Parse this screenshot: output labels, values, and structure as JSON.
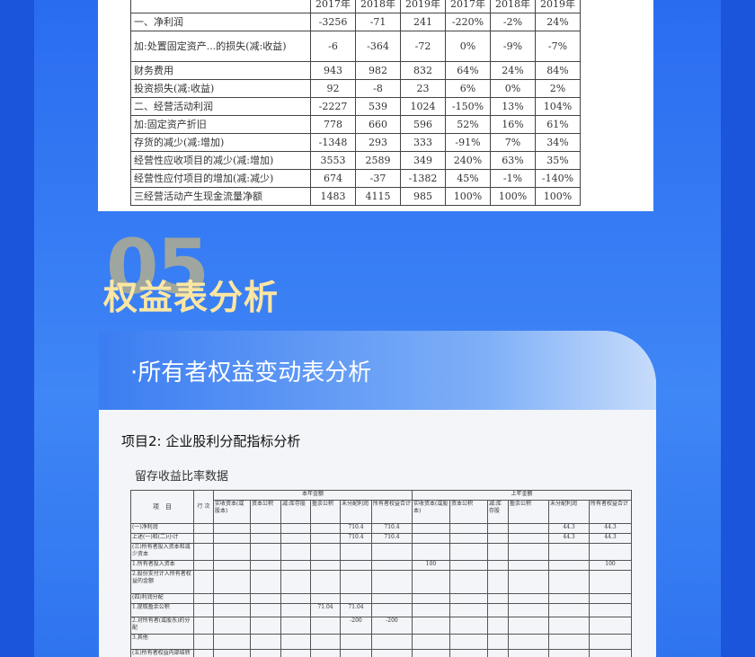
{
  "income_table": {
    "header": [
      "2017年",
      "2018年",
      "2019年",
      "2017年",
      "2018年",
      "2019年"
    ],
    "rows": [
      [
        "一、净利润",
        "-3256",
        "-71",
        "241",
        "-220%",
        "-2%",
        "24%"
      ],
      [
        "加:处置固定资产...的损失(减:收益)",
        "-6",
        "-364",
        "-72",
        "0%",
        "-9%",
        "-7%"
      ],
      [
        "财务费用",
        "943",
        "982",
        "832",
        "64%",
        "24%",
        "84%"
      ],
      [
        "投资损失(减:收益)",
        "92",
        "-8",
        "23",
        "6%",
        "0%",
        "2%"
      ],
      [
        "二、经营活动利润",
        "-2227",
        "539",
        "1024",
        "-150%",
        "13%",
        "104%"
      ],
      [
        "加:固定资产折旧",
        "778",
        "660",
        "596",
        "52%",
        "16%",
        "61%"
      ],
      [
        "存货的减少(减:增加)",
        "-1348",
        "293",
        "333",
        "-91%",
        "7%",
        "34%"
      ],
      [
        "经营性应收项目的减少(减:增加)",
        "3553",
        "2589",
        "349",
        "240%",
        "63%",
        "35%"
      ],
      [
        "经营性应付项目的增加(减:减少)",
        "674",
        "-37",
        "-1382",
        "45%",
        "-1%",
        "-140%"
      ],
      [
        "三经营活动产生现金流量净额",
        "1483",
        "4115",
        "985",
        "100%",
        "100%",
        "100%"
      ]
    ]
  },
  "section": {
    "number": "05",
    "title": "权益表分析"
  },
  "card": {
    "title": "·所有者权益变动表分析",
    "doc_title": "项目2: 企业股利分配指标分析",
    "doc_subtitle": "留存收益比率数据",
    "equity_table": {
      "group_header": [
        "项　目",
        "行 次",
        "本年金额",
        "上年金额"
      ],
      "columns": [
        "实收资本(或股本)",
        "资本公积",
        "减:库存股",
        "盈余公积",
        "未分配利润",
        "所有者权益合计",
        "实收资本(或股本)",
        "资本公积",
        "减:库存股",
        "盈余公积",
        "未分配利润",
        "所有者权益合计"
      ],
      "rows": [
        [
          "(一)净利润",
          null,
          null,
          null,
          null,
          null,
          "710.4",
          "710.4",
          null,
          null,
          null,
          null,
          "44.3",
          "44.3"
        ],
        [
          "上述(一)和(二)小计",
          null,
          null,
          null,
          null,
          null,
          "710.4",
          "710.4",
          null,
          null,
          null,
          null,
          "44.3",
          "44.3"
        ],
        [
          "(三)所有者投入资本和减少资本",
          null,
          null,
          null,
          null,
          null,
          null,
          null,
          null,
          null,
          null,
          null,
          null,
          null
        ],
        [
          "1.所有者投入资本",
          null,
          null,
          null,
          null,
          null,
          null,
          null,
          "100",
          null,
          null,
          null,
          null,
          "100"
        ],
        [
          "2.股份支付计入所有者权益的金额",
          null,
          null,
          null,
          null,
          null,
          null,
          null,
          null,
          null,
          null,
          null,
          null,
          null
        ],
        [
          "(四)利润分配",
          null,
          null,
          null,
          null,
          null,
          null,
          null,
          null,
          null,
          null,
          null,
          null,
          null
        ],
        [
          "1.提取盈余公积",
          null,
          null,
          null,
          null,
          "71.04",
          "71.04",
          null,
          null,
          null,
          null,
          null,
          null,
          null
        ],
        [
          "2.对所有者(或股东)的分配",
          null,
          null,
          null,
          null,
          null,
          "-200",
          "-200",
          null,
          null,
          null,
          null,
          null,
          null
        ],
        [
          "3.其他",
          null,
          null,
          null,
          null,
          null,
          null,
          null,
          null,
          null,
          null,
          null,
          null,
          null
        ],
        [
          "(五)所有者权益内部结转",
          null,
          null,
          null,
          null,
          null,
          null,
          null,
          null,
          null,
          null,
          null,
          null,
          null
        ]
      ]
    }
  }
}
